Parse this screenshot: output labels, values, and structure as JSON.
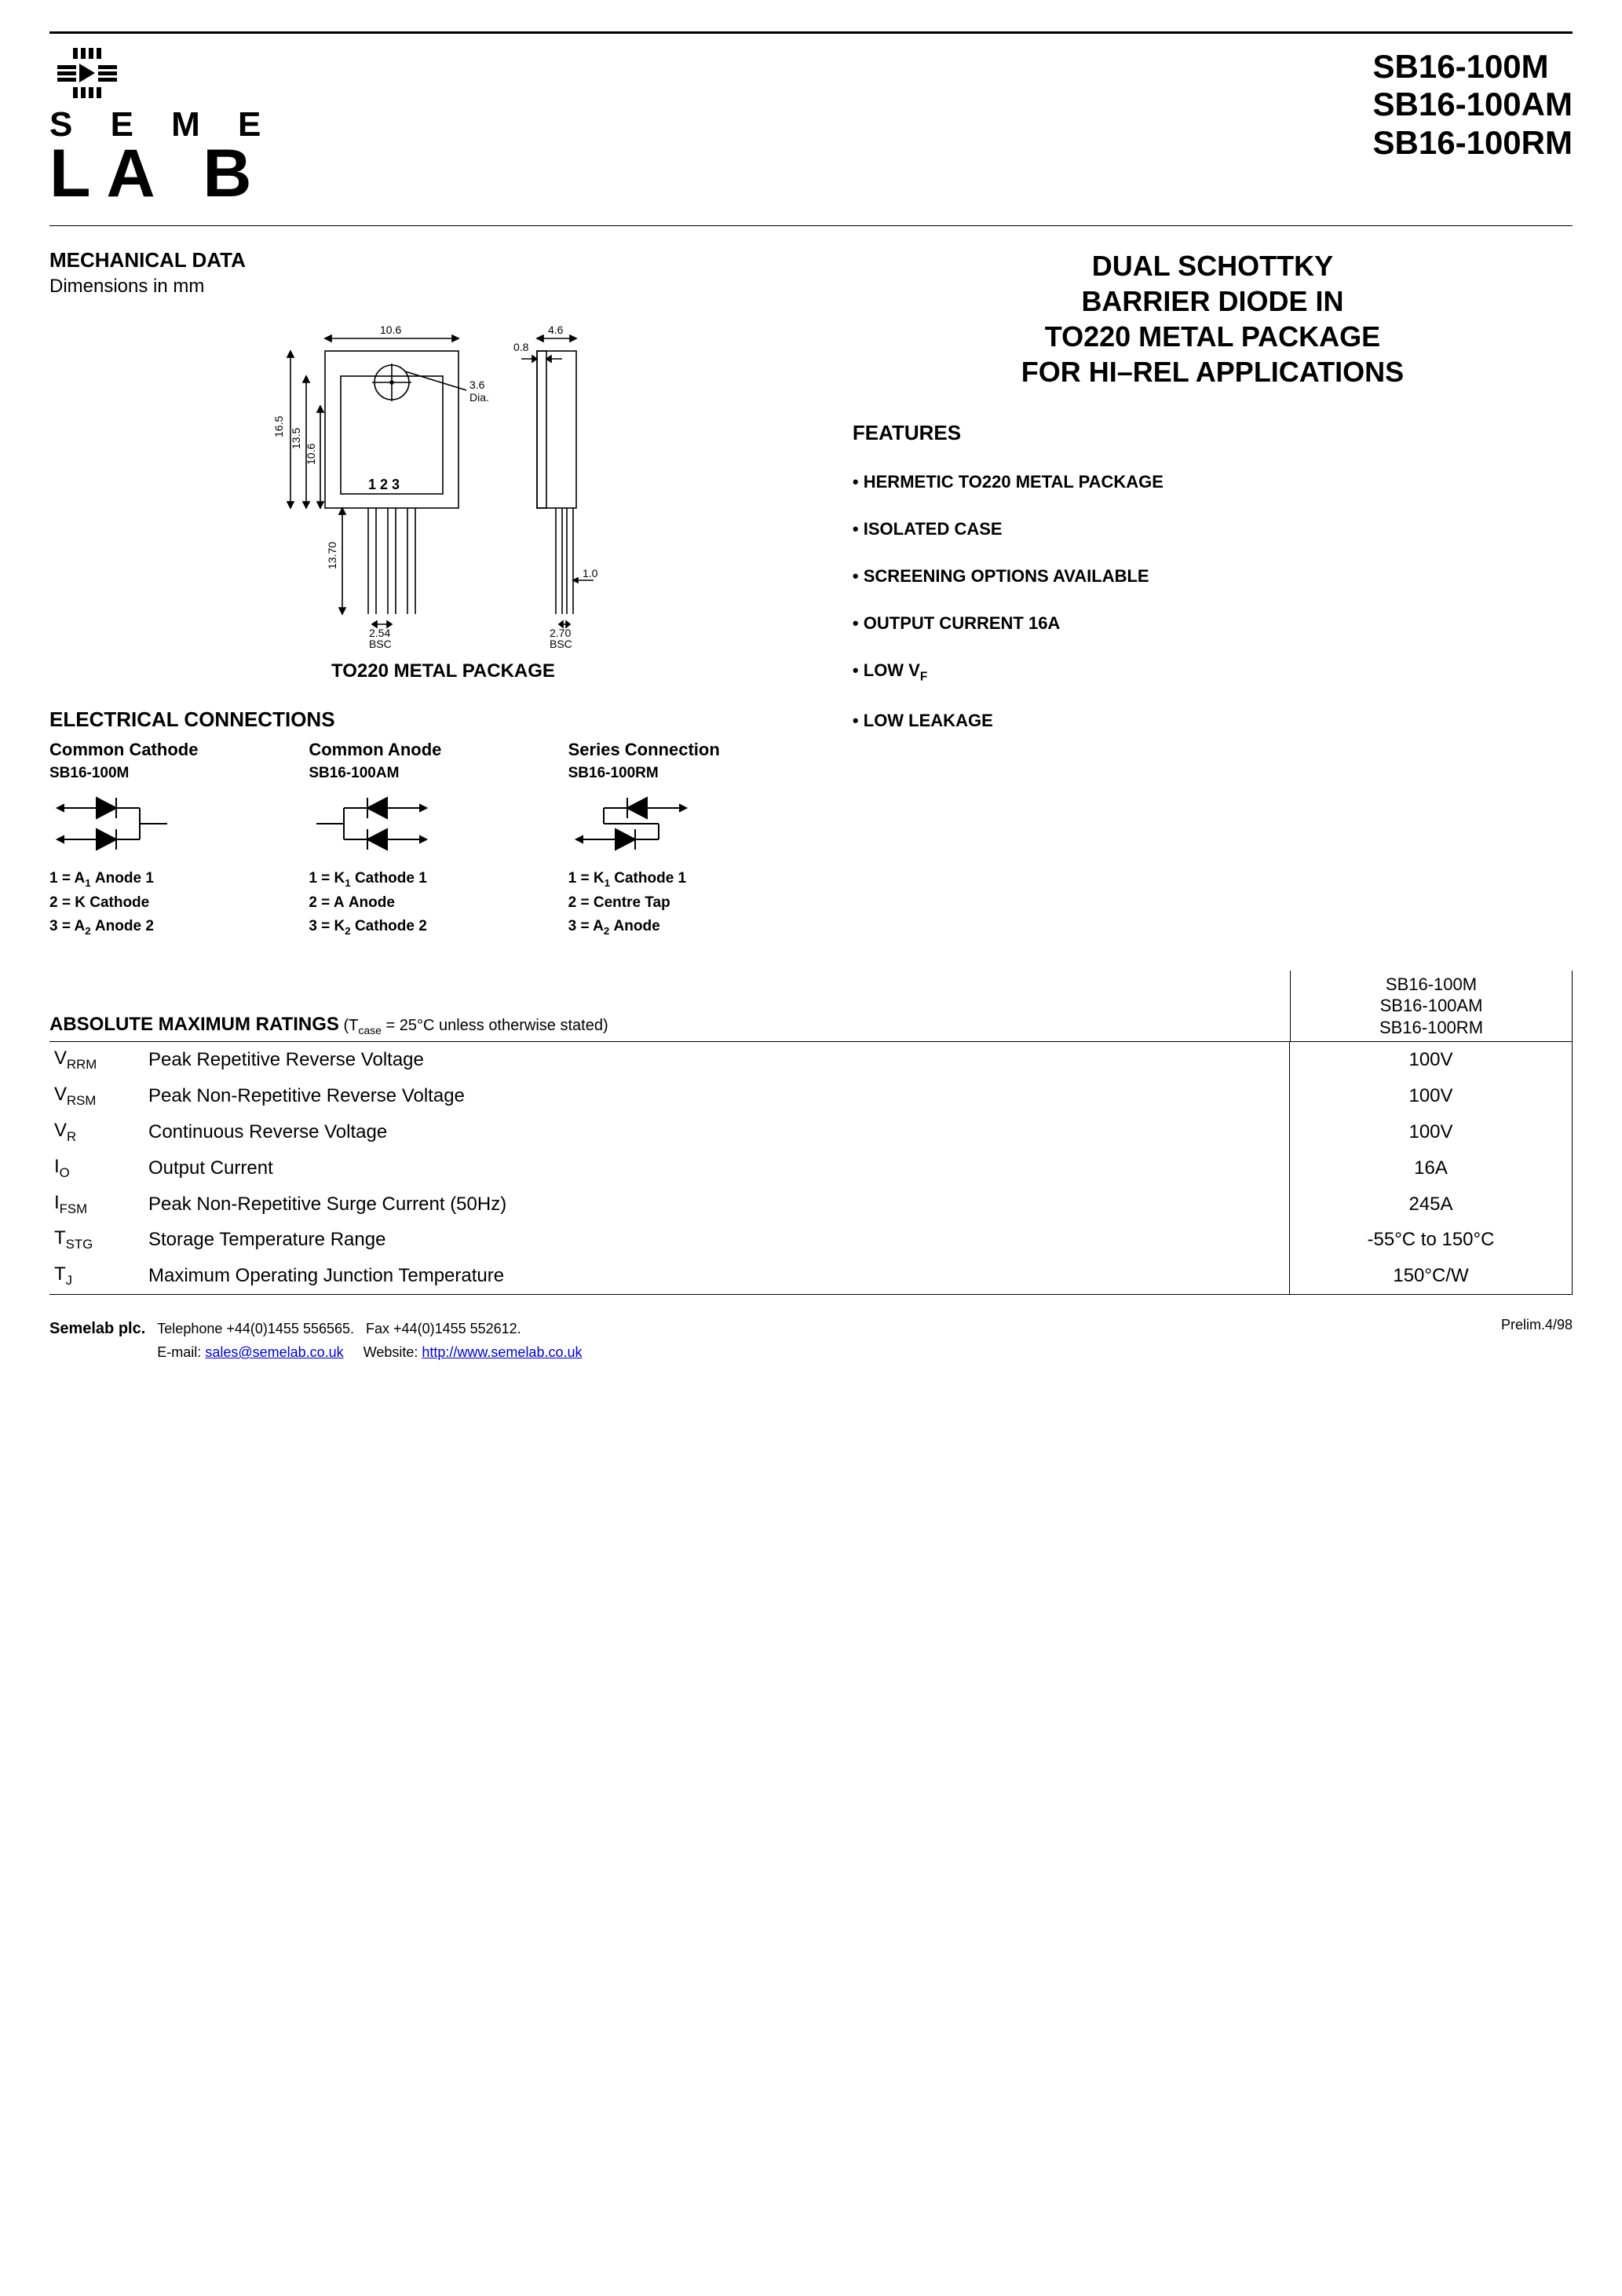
{
  "logo": {
    "line1": "S E M E",
    "line2": "LA B"
  },
  "parts": [
    "SB16-100M",
    "SB16-100AM",
    "SB16-100RM"
  ],
  "mech": {
    "heading": "MECHANICAL DATA",
    "note": "Dimensions in mm"
  },
  "package_label": "TO220 METAL PACKAGE",
  "pkg_dims": {
    "w": "10.6",
    "side_w": "4.6",
    "tab": "0.8",
    "h_total": "16.5",
    "h_body": "13.5",
    "hole_y": "10.6",
    "hole": "3.6",
    "hole_label": "Dia.",
    "lead_len": "13.70",
    "lead_w": "1.0",
    "pitch_front": "2.54",
    "pitch_side": "2.70",
    "bsc": "BSC",
    "pins": "1  2  3"
  },
  "title_lines": [
    "DUAL SCHOTTKY",
    "BARRIER DIODE IN",
    "TO220 METAL PACKAGE",
    "FOR HI–REL APPLICATIONS"
  ],
  "features_heading": "FEATURES",
  "features": [
    "HERMETIC TO220 METAL PACKAGE",
    "ISOLATED CASE",
    "SCREENING OPTIONS AVAILABLE",
    "OUTPUT CURRENT 16A",
    "LOW V",
    "LOW LEAKAGE"
  ],
  "feature_vf_sub": "F",
  "elec_heading": "ELECTRICAL CONNECTIONS",
  "connections": [
    {
      "title": "Common Cathode",
      "part": "SB16-100M",
      "pins": [
        {
          "n": "1",
          "sym": "A",
          "sub": "1",
          "desc": "Anode 1"
        },
        {
          "n": "2",
          "sym": "K",
          "sub": "",
          "desc": "Cathode"
        },
        {
          "n": "3",
          "sym": "A",
          "sub": "2",
          "desc": "Anode 2"
        }
      ]
    },
    {
      "title": "Common Anode",
      "part": "SB16-100AM",
      "pins": [
        {
          "n": "1",
          "sym": "K",
          "sub": "1",
          "desc": "Cathode 1"
        },
        {
          "n": "2",
          "sym": "A",
          "sub": "",
          "desc": "Anode"
        },
        {
          "n": "3",
          "sym": "K",
          "sub": "2",
          "desc": "Cathode 2"
        }
      ]
    },
    {
      "title": "Series Connection",
      "part": "SB16-100RM",
      "pins": [
        {
          "n": "1",
          "sym": "K",
          "sub": "1",
          "desc": "Cathode 1"
        },
        {
          "n": "2",
          "sym": "Centre Tap",
          "sub": "",
          "desc": ""
        },
        {
          "n": "3",
          "sym": "A",
          "sub": "2",
          "desc": "Anode"
        }
      ]
    }
  ],
  "ratings": {
    "title": "ABSOLUTE MAXIMUM RATINGS",
    "cond_prefix": " (T",
    "cond_sub": "case",
    "cond_suffix": " = 25°C unless otherwise stated)",
    "col_parts": [
      "SB16-100M",
      "SB16-100AM",
      "SB16-100RM"
    ],
    "rows": [
      {
        "sym": "V",
        "sub": "RRM",
        "desc": "Peak Repetitive Reverse Voltage",
        "val": "100V"
      },
      {
        "sym": "V",
        "sub": "RSM",
        "desc": "Peak Non-Repetitive Reverse Voltage",
        "val": "100V"
      },
      {
        "sym": "V",
        "sub": "R",
        "desc": "Continuous Reverse Voltage",
        "val": "100V"
      },
      {
        "sym": "I",
        "sub": "O",
        "desc": "Output Current",
        "val": "16A"
      },
      {
        "sym": "I",
        "sub": "FSM",
        "desc": "Peak Non-Repetitive Surge Current (50Hz)",
        "val": "245A"
      },
      {
        "sym": "T",
        "sub": "STG",
        "desc": "Storage Temperature Range",
        "val": "-55°C to 150°C"
      },
      {
        "sym": "T",
        "sub": "J",
        "desc": "Maximum Operating Junction Temperature",
        "val": "150°C/W"
      }
    ]
  },
  "footer": {
    "company": "Semelab plc.",
    "tel": "Telephone +44(0)1455 556565.",
    "fax": "Fax +44(0)1455 552612.",
    "email_label": "E-mail: ",
    "email": "sales@semelab.co.uk",
    "web_label": "Website: ",
    "web": "http://www.semelab.co.uk",
    "rev": "Prelim.4/98"
  },
  "colors": {
    "text": "#000000",
    "bg": "#ffffff",
    "link": "#0000cc",
    "line": "#000000"
  }
}
